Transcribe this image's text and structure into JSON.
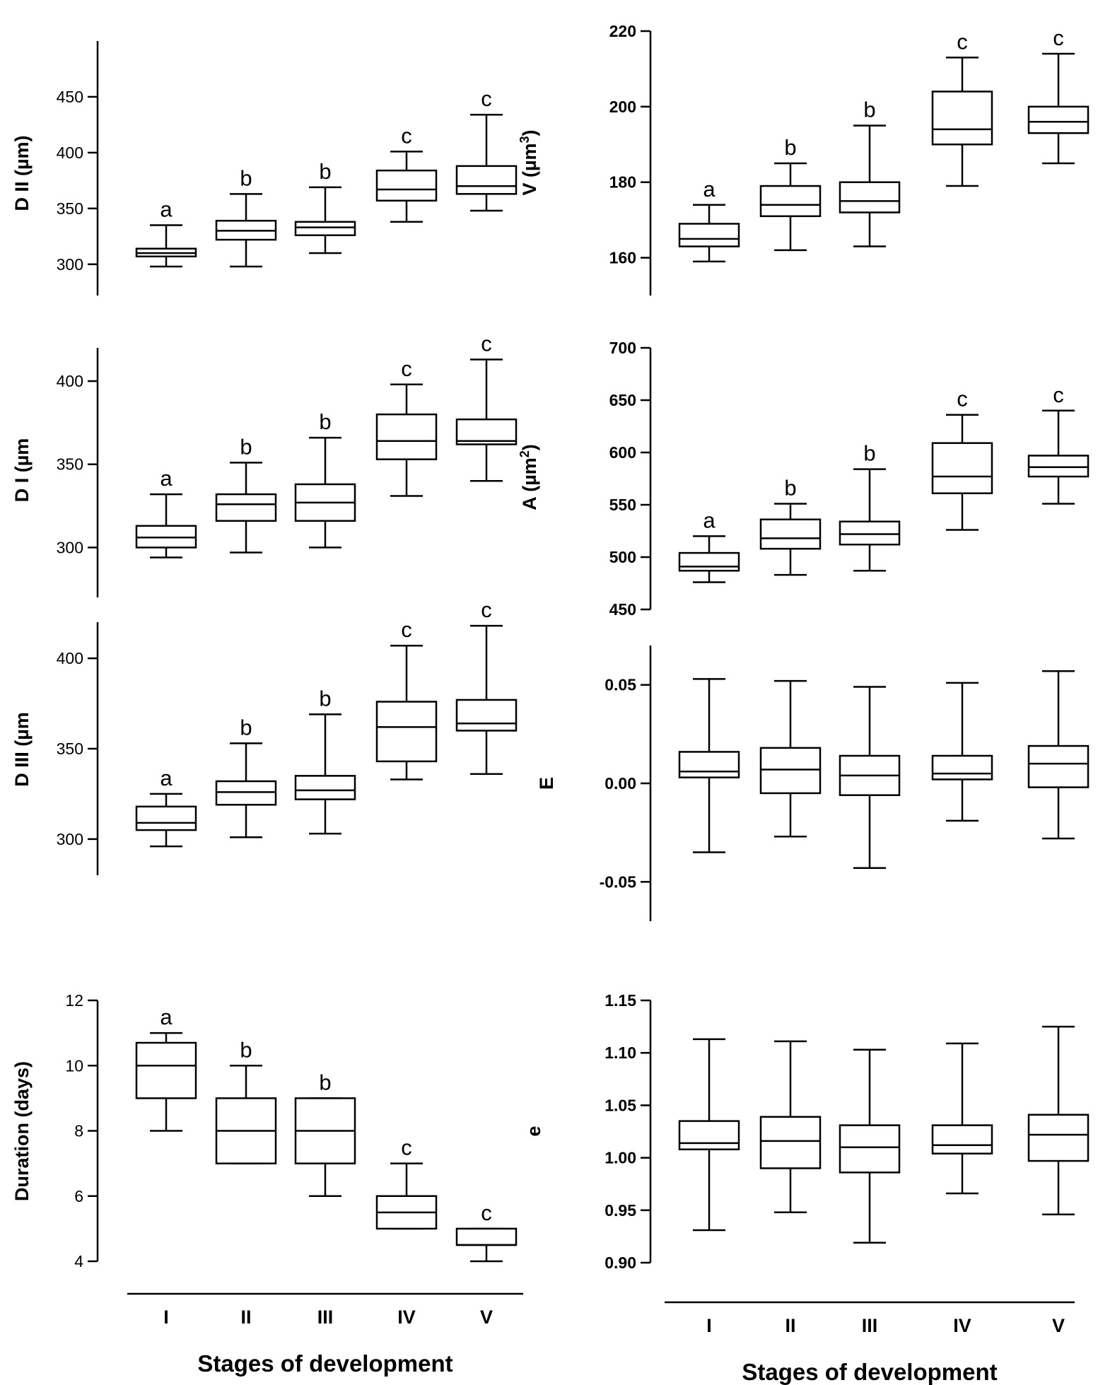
{
  "chart_data": [
    {
      "type": "box",
      "id": "dii",
      "ylabel": "D II (µm)",
      "categories": [
        "I",
        "II",
        "III",
        "IV",
        "V"
      ],
      "yticks": [
        300,
        350,
        400,
        450
      ],
      "tick_labels": [
        "300",
        "350",
        "400",
        "450"
      ],
      "ylim": [
        272,
        500
      ],
      "boxes": [
        {
          "min": 298,
          "q1": 307,
          "median": 310,
          "q3": 314,
          "max": 335,
          "letter": "a"
        },
        {
          "min": 298,
          "q1": 322,
          "median": 330,
          "q3": 339,
          "max": 363,
          "letter": "b"
        },
        {
          "min": 310,
          "q1": 326,
          "median": 333,
          "q3": 338,
          "max": 369,
          "letter": "b"
        },
        {
          "min": 338,
          "q1": 357,
          "median": 367,
          "q3": 384,
          "max": 401,
          "letter": "c"
        },
        {
          "min": 348,
          "q1": 363,
          "median": 370,
          "q3": 388,
          "max": 434,
          "letter": "c"
        }
      ]
    },
    {
      "type": "box",
      "id": "volume",
      "ylabel": "V (µm",
      "ylabel_sup": "3",
      "ylabel_end": ")",
      "categories": [
        "I",
        "II",
        "III",
        "IV",
        "V"
      ],
      "yticks": [
        160,
        180,
        200,
        220
      ],
      "tick_labels": [
        "160",
        "180",
        "200",
        "220"
      ],
      "ylim": [
        150,
        220
      ],
      "boxes": [
        {
          "min": 159,
          "q1": 163,
          "median": 165,
          "q3": 169,
          "max": 174,
          "letter": "a"
        },
        {
          "min": 162,
          "q1": 171,
          "median": 174,
          "q3": 179,
          "max": 185,
          "letter": "b"
        },
        {
          "min": 163,
          "q1": 172,
          "median": 175,
          "q3": 180,
          "max": 195,
          "letter": "b"
        },
        {
          "min": 179,
          "q1": 190,
          "median": 194,
          "q3": 204,
          "max": 213,
          "letter": "c"
        },
        {
          "min": 185,
          "q1": 193,
          "median": 196,
          "q3": 200,
          "max": 214,
          "letter": "c"
        }
      ]
    },
    {
      "type": "box",
      "id": "di",
      "ylabel": "D I (µm",
      "categories": [
        "I",
        "II",
        "III",
        "IV",
        "V"
      ],
      "yticks": [
        300,
        350,
        400
      ],
      "tick_labels": [
        "300",
        "350",
        "400"
      ],
      "ylim": [
        270,
        420
      ],
      "boxes": [
        {
          "min": 294,
          "q1": 300,
          "median": 306,
          "q3": 313,
          "max": 332,
          "letter": "a"
        },
        {
          "min": 297,
          "q1": 316,
          "median": 326,
          "q3": 332,
          "max": 351,
          "letter": "b"
        },
        {
          "min": 300,
          "q1": 316,
          "median": 327,
          "q3": 338,
          "max": 366,
          "letter": "b"
        },
        {
          "min": 331,
          "q1": 353,
          "median": 364,
          "q3": 380,
          "max": 398,
          "letter": "c"
        },
        {
          "min": 340,
          "q1": 362,
          "median": 364,
          "q3": 377,
          "max": 413,
          "letter": "c"
        }
      ]
    },
    {
      "type": "box",
      "id": "area",
      "ylabel": "A (µm",
      "ylabel_sup": "2",
      "ylabel_end": ")",
      "categories": [
        "I",
        "II",
        "III",
        "IV",
        "V"
      ],
      "yticks": [
        450,
        500,
        550,
        600,
        650,
        700
      ],
      "tick_labels": [
        "450",
        "500",
        "550",
        "600",
        "650",
        "700"
      ],
      "ylim": [
        450,
        700
      ],
      "boxes": [
        {
          "min": 476,
          "q1": 487,
          "median": 491,
          "q3": 504,
          "max": 520,
          "letter": "a"
        },
        {
          "min": 483,
          "q1": 508,
          "median": 518,
          "q3": 536,
          "max": 551,
          "letter": "b"
        },
        {
          "min": 487,
          "q1": 512,
          "median": 522,
          "q3": 534,
          "max": 584,
          "letter": "b"
        },
        {
          "min": 526,
          "q1": 561,
          "median": 577,
          "q3": 609,
          "max": 636,
          "letter": "c"
        },
        {
          "min": 551,
          "q1": 577,
          "median": 586,
          "q3": 597,
          "max": 640,
          "letter": "c"
        }
      ]
    },
    {
      "type": "box",
      "id": "diii",
      "ylabel": "D III (µm",
      "categories": [
        "I",
        "II",
        "III",
        "IV",
        "V"
      ],
      "yticks": [
        300,
        350,
        400
      ],
      "tick_labels": [
        "300",
        "350",
        "400"
      ],
      "ylim": [
        280,
        420
      ],
      "boxes": [
        {
          "min": 296,
          "q1": 305,
          "median": 309,
          "q3": 318,
          "max": 325,
          "letter": "a"
        },
        {
          "min": 301,
          "q1": 319,
          "median": 326,
          "q3": 332,
          "max": 353,
          "letter": "b"
        },
        {
          "min": 303,
          "q1": 322,
          "median": 327,
          "q3": 335,
          "max": 369,
          "letter": "b"
        },
        {
          "min": 333,
          "q1": 343,
          "median": 362,
          "q3": 376,
          "max": 407,
          "letter": "c"
        },
        {
          "min": 336,
          "q1": 360,
          "median": 364,
          "q3": 377,
          "max": 418,
          "letter": "c"
        }
      ]
    },
    {
      "type": "box",
      "id": "E",
      "ylabel": "E",
      "categories": [
        "I",
        "II",
        "III",
        "IV",
        "V"
      ],
      "yticks": [
        -0.05,
        0.0,
        0.05
      ],
      "tick_labels": [
        "-0.05",
        "0.00",
        "0.05"
      ],
      "ylim": [
        -0.07,
        0.07
      ],
      "boxes": [
        {
          "min": -0.035,
          "q1": 0.003,
          "median": 0.006,
          "q3": 0.016,
          "max": 0.053
        },
        {
          "min": -0.027,
          "q1": -0.005,
          "median": 0.007,
          "q3": 0.018,
          "max": 0.052
        },
        {
          "min": -0.043,
          "q1": -0.006,
          "median": 0.004,
          "q3": 0.014,
          "max": 0.049
        },
        {
          "min": -0.019,
          "q1": 0.002,
          "median": 0.005,
          "q3": 0.014,
          "max": 0.051
        },
        {
          "min": -0.028,
          "q1": -0.002,
          "median": 0.01,
          "q3": 0.019,
          "max": 0.057
        }
      ]
    },
    {
      "type": "box",
      "id": "duration",
      "ylabel": "Duration (days)",
      "xlabel": "Stages of development",
      "categories": [
        "I",
        "II",
        "III",
        "IV",
        "V"
      ],
      "yticks": [
        4,
        6,
        8,
        10,
        12
      ],
      "tick_labels": [
        "4",
        "6",
        "8",
        "10",
        "12"
      ],
      "ylim": [
        4,
        12
      ],
      "boxes": [
        {
          "min": 8,
          "q1": 9,
          "median": 10,
          "q3": 10.7,
          "max": 11,
          "letter": "a"
        },
        {
          "min": 7,
          "q1": 7,
          "median": 8,
          "q3": 9,
          "max": 10,
          "letter": "b"
        },
        {
          "min": 6,
          "q1": 7,
          "median": 8,
          "q3": 9,
          "max": 9,
          "letter": "b"
        },
        {
          "min": 5,
          "q1": 5,
          "median": 5.5,
          "q3": 6,
          "max": 7,
          "letter": "c"
        },
        {
          "min": 4,
          "q1": 4.5,
          "median": 4.5,
          "q3": 5,
          "max": 5,
          "letter": "c"
        }
      ]
    },
    {
      "type": "box",
      "id": "e",
      "ylabel": "e",
      "xlabel": "Stages of development",
      "categories": [
        "I",
        "II",
        "III",
        "IV",
        "V"
      ],
      "yticks": [
        0.9,
        0.95,
        1.0,
        1.05,
        1.1,
        1.15
      ],
      "tick_labels": [
        "0.90",
        "0.95",
        "1.00",
        "1.05",
        "1.10",
        "1.15"
      ],
      "ylim": [
        0.9,
        1.15
      ],
      "boxes": [
        {
          "min": 0.931,
          "q1": 1.008,
          "median": 1.014,
          "q3": 1.035,
          "max": 1.113
        },
        {
          "min": 0.948,
          "q1": 0.99,
          "median": 1.016,
          "q3": 1.039,
          "max": 1.111
        },
        {
          "min": 0.919,
          "q1": 0.986,
          "median": 1.01,
          "q3": 1.031,
          "max": 1.103
        },
        {
          "min": 0.966,
          "q1": 1.004,
          "median": 1.012,
          "q3": 1.031,
          "max": 1.109
        },
        {
          "min": 0.946,
          "q1": 0.997,
          "median": 1.022,
          "q3": 1.041,
          "max": 1.125
        }
      ]
    }
  ]
}
